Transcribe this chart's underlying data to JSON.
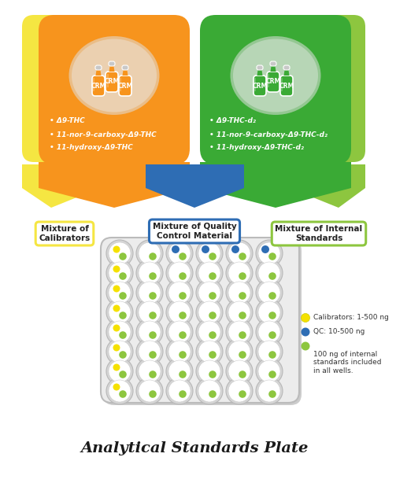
{
  "title": "Analytical Standards Plate",
  "orange_color": "#F7941D",
  "green_color": "#3AAA35",
  "light_green_color": "#8DC63F",
  "yellow_color": "#F5E642",
  "blue_color": "#2E6DB4",
  "vial_circle_bg": "#e8e8e8",
  "left_bullets": [
    "Δ9-THC",
    "11-nor-9-carboxy-Δ9-THC",
    "11-hydroxy-Δ9-THC"
  ],
  "right_bullets": [
    "Δ9-THC-d₂",
    "11-nor-9-carboxy-Δ9-THC-d₂",
    "11-hydroxy-Δ9-THC-d₂"
  ],
  "label_calibrators": "Mixture of\nCalibrators",
  "label_qc": "Mixture of Quality\nControl Material",
  "label_internal": "Mixture of Internal\nStandards",
  "legend_yellow_text": "Calibrators: 1-500 ng",
  "legend_blue_text": "QC: 10-500 ng",
  "legend_green_text": "100 ng of internal\nstandards included\nin all wells.",
  "well_green": "#8DC63F",
  "well_yellow": "#F5E100",
  "well_blue": "#2E6DB4",
  "plate_rows": 8,
  "plate_cols": 6
}
